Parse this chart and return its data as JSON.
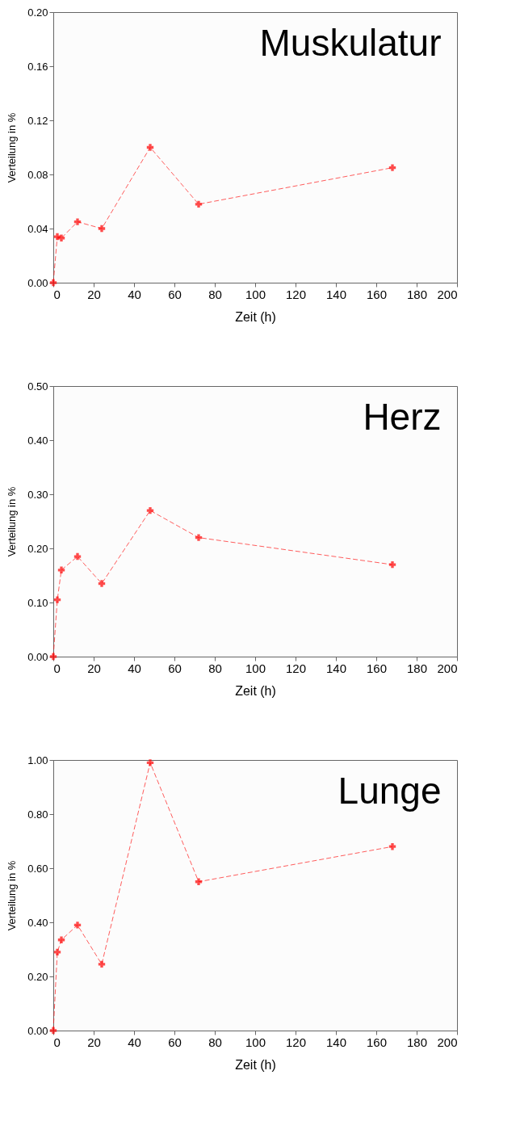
{
  "chart_data": [
    {
      "type": "line",
      "title": "Muskulatur",
      "xlabel": "Zeit (h)",
      "ylabel": "Verteilung in %",
      "x": [
        0,
        2,
        4,
        12,
        24,
        48,
        72,
        168
      ],
      "series": [
        {
          "color": "#ff0000",
          "values": [
            0,
            0.034,
            0.033,
            0.045,
            0.04,
            0.1,
            0.058,
            0.085
          ]
        }
      ],
      "xlim": [
        0,
        200
      ],
      "xticks": [
        0,
        20,
        40,
        60,
        80,
        100,
        120,
        140,
        160,
        180,
        200
      ],
      "ylim": [
        0,
        0.2
      ],
      "yticks": [
        {
          "value": 0,
          "label": "0.00"
        },
        {
          "value": 0.04,
          "label": "0.04"
        },
        {
          "value": 0.08,
          "label": "0.08"
        },
        {
          "value": 0.12,
          "label": "0.12"
        },
        {
          "value": 0.16,
          "label": "0.16"
        },
        {
          "value": 0.2,
          "label": "0.20"
        }
      ],
      "marker": "cross",
      "line_style": "dashed"
    },
    {
      "type": "line",
      "title": "Herz",
      "xlabel": "Zeit (h)",
      "ylabel": "Verteilung in %",
      "x": [
        0,
        2,
        4,
        12,
        24,
        48,
        72,
        168
      ],
      "series": [
        {
          "color": "#ff0000",
          "values": [
            0,
            0.105,
            0.16,
            0.185,
            0.135,
            0.27,
            0.22,
            0.17
          ]
        }
      ],
      "xlim": [
        0,
        200
      ],
      "xticks": [
        0,
        20,
        40,
        60,
        80,
        100,
        120,
        140,
        160,
        180,
        200
      ],
      "ylim": [
        0,
        0.5
      ],
      "yticks": [
        {
          "value": 0,
          "label": "0.00"
        },
        {
          "value": 0.1,
          "label": "0.10"
        },
        {
          "value": 0.2,
          "label": "0.20"
        },
        {
          "value": 0.3,
          "label": "0.30"
        },
        {
          "value": 0.4,
          "label": "0.40"
        },
        {
          "value": 0.5,
          "label": "0.50"
        }
      ],
      "marker": "cross",
      "line_style": "dashed"
    },
    {
      "type": "line",
      "title": "Lunge",
      "xlabel": "Zeit (h)",
      "ylabel": "Verteilung in %",
      "x": [
        0,
        2,
        4,
        12,
        24,
        48,
        72,
        168
      ],
      "series": [
        {
          "color": "#ff0000",
          "values": [
            0,
            0.29,
            0.335,
            0.39,
            0.245,
            0.99,
            0.55,
            0.68
          ]
        }
      ],
      "xlim": [
        0,
        200
      ],
      "xticks": [
        0,
        20,
        40,
        60,
        80,
        100,
        120,
        140,
        160,
        180,
        200
      ],
      "ylim": [
        0,
        1
      ],
      "yticks": [
        {
          "value": 0,
          "label": "0.00"
        },
        {
          "value": 0.2,
          "label": "0.20"
        },
        {
          "value": 0.4,
          "label": "0.40"
        },
        {
          "value": 0.6,
          "label": "0.60"
        },
        {
          "value": 0.8,
          "label": "0.80"
        },
        {
          "value": 1,
          "label": "1.00"
        }
      ],
      "marker": "cross",
      "line_style": "dashed"
    }
  ]
}
